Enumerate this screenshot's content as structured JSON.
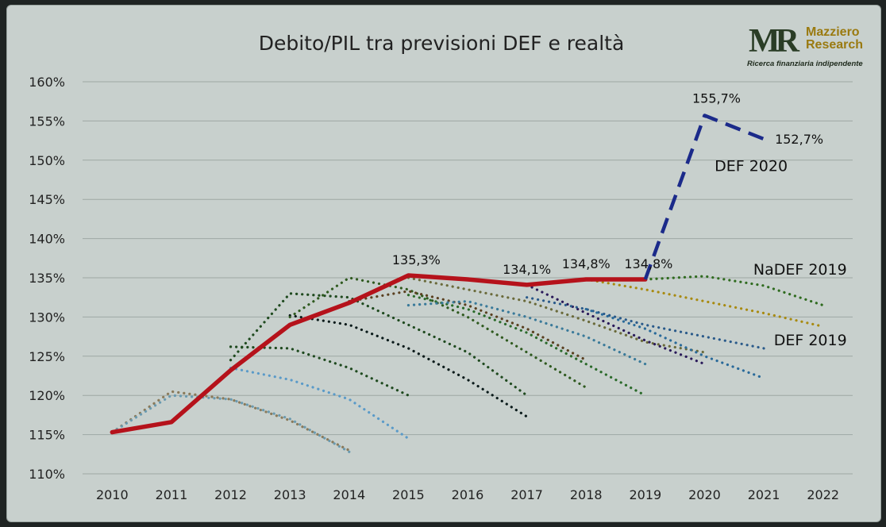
{
  "chart_data": {
    "type": "line",
    "title": "Debito/PIL tra previsioni DEF e realtà",
    "xlabel": "",
    "ylabel": "",
    "x": [
      2010,
      2011,
      2012,
      2013,
      2014,
      2015,
      2016,
      2017,
      2018,
      2019,
      2020,
      2021,
      2022
    ],
    "y_ticks": [
      "110%",
      "115%",
      "120%",
      "125%",
      "130%",
      "135%",
      "140%",
      "145%",
      "150%",
      "155%",
      "160%"
    ],
    "ylim": [
      110,
      160
    ],
    "grid": true,
    "legend": "none",
    "series": [
      {
        "style": "solid",
        "color": "#b5121b",
        "points": [
          [
            2010,
            115.3
          ],
          [
            2011,
            116.6
          ],
          [
            2012,
            123.2
          ],
          [
            2013,
            129.0
          ],
          [
            2014,
            131.8
          ],
          [
            2015,
            135.3
          ],
          [
            2016,
            134.8
          ],
          [
            2017,
            134.1
          ],
          [
            2018,
            134.8
          ],
          [
            2019,
            134.8
          ]
        ]
      },
      {
        "name": "DEF 2020",
        "style": "dashed",
        "color": "#1b2a8a",
        "points": [
          [
            2019,
            134.8
          ],
          [
            2020,
            155.7
          ],
          [
            2021,
            152.7
          ]
        ]
      },
      {
        "name": "NaDEF 2019",
        "style": "dotted",
        "color": "#2f6b1f",
        "points": [
          [
            2019,
            134.8
          ],
          [
            2020,
            135.2
          ],
          [
            2021,
            134.0
          ],
          [
            2022,
            131.5
          ]
        ]
      },
      {
        "name": "DEF 2019",
        "style": "dotted",
        "color": "#a88a10",
        "points": [
          [
            2018,
            134.8
          ],
          [
            2019,
            133.5
          ],
          [
            2020,
            132.0
          ],
          [
            2021,
            130.5
          ],
          [
            2022,
            128.8
          ]
        ]
      },
      {
        "style": "dotted",
        "color": "#8a7a5a",
        "points": [
          [
            2010,
            115.3
          ],
          [
            2011,
            120.5
          ],
          [
            2012,
            119.5
          ],
          [
            2013,
            116.8
          ],
          [
            2014,
            113.0
          ]
        ]
      },
      {
        "style": "dotted",
        "color": "#6a9ab0",
        "points": [
          [
            2010,
            115.3
          ],
          [
            2011,
            120.0
          ],
          [
            2012,
            119.5
          ],
          [
            2013,
            117.0
          ],
          [
            2014,
            112.8
          ]
        ]
      },
      {
        "style": "dotted",
        "color": "#5a9ac8",
        "points": [
          [
            2012,
            123.5
          ],
          [
            2013,
            122.0
          ],
          [
            2014,
            119.5
          ],
          [
            2015,
            114.5
          ]
        ]
      },
      {
        "style": "dotted",
        "color": "#1f4a1f",
        "points": [
          [
            2012,
            126.2
          ],
          [
            2013,
            126.0
          ],
          [
            2014,
            123.5
          ],
          [
            2015,
            120.0
          ]
        ]
      },
      {
        "style": "dotted",
        "color": "#1f4a1f",
        "points": [
          [
            2012,
            124.5
          ],
          [
            2013,
            133.0
          ],
          [
            2014,
            132.5
          ],
          [
            2015,
            129.0
          ],
          [
            2016,
            125.5
          ],
          [
            2017,
            120.0
          ]
        ]
      },
      {
        "style": "dotted",
        "color": "#0a1a1a",
        "points": [
          [
            2013,
            130.2
          ],
          [
            2014,
            129.0
          ],
          [
            2015,
            126.0
          ],
          [
            2016,
            122.0
          ],
          [
            2017,
            117.3
          ]
        ]
      },
      {
        "style": "dotted",
        "color": "#2f5a1f",
        "points": [
          [
            2013,
            130.0
          ],
          [
            2014,
            135.0
          ],
          [
            2015,
            133.5
          ],
          [
            2016,
            130.0
          ],
          [
            2017,
            125.5
          ],
          [
            2018,
            121.0
          ]
        ]
      },
      {
        "style": "dotted",
        "color": "#5a4020",
        "points": [
          [
            2014,
            132.0
          ],
          [
            2015,
            133.3
          ],
          [
            2016,
            131.5
          ],
          [
            2017,
            128.5
          ],
          [
            2018,
            124.5
          ]
        ]
      },
      {
        "style": "dotted",
        "color": "#2a6a2a",
        "points": [
          [
            2015,
            132.8
          ],
          [
            2016,
            131.0
          ],
          [
            2017,
            128.0
          ],
          [
            2018,
            124.0
          ],
          [
            2019,
            120.0
          ]
        ]
      },
      {
        "style": "dotted",
        "color": "#3a7a9a",
        "points": [
          [
            2015,
            131.5
          ],
          [
            2016,
            132.0
          ],
          [
            2017,
            130.0
          ],
          [
            2018,
            127.5
          ],
          [
            2019,
            124.0
          ]
        ]
      },
      {
        "style": "dotted",
        "color": "#6a6a3a",
        "points": [
          [
            2015,
            135.0
          ],
          [
            2016,
            133.5
          ],
          [
            2017,
            132.0
          ],
          [
            2018,
            129.5
          ],
          [
            2019,
            126.8
          ],
          [
            2020,
            125.5
          ]
        ]
      },
      {
        "style": "dotted",
        "color": "#2a1a5a",
        "points": [
          [
            2017,
            134.1
          ],
          [
            2018,
            130.5
          ],
          [
            2019,
            127.0
          ],
          [
            2020,
            124.0
          ]
        ]
      },
      {
        "style": "dotted",
        "color": "#2a5a8a",
        "points": [
          [
            2017,
            132.5
          ],
          [
            2018,
            131.0
          ],
          [
            2019,
            129.0
          ],
          [
            2020,
            127.5
          ],
          [
            2021,
            126.0
          ]
        ]
      },
      {
        "style": "dotted",
        "color": "#2a6a9a",
        "points": [
          [
            2018,
            131.0
          ],
          [
            2019,
            128.5
          ],
          [
            2020,
            125.0
          ],
          [
            2021,
            122.2
          ]
        ]
      }
    ],
    "annotations": [
      {
        "text": "135,3%",
        "x": 2015,
        "y": 135.3
      },
      {
        "text": "134,1%",
        "x": 2017,
        "y": 134.1
      },
      {
        "text": "134,8%",
        "x": 2018,
        "y": 134.8
      },
      {
        "text": "134,8%",
        "x": 2019,
        "y": 134.8
      },
      {
        "text": "155,7%",
        "x": 2020,
        "y": 155.7
      },
      {
        "text": "152,7%",
        "x": 2021,
        "y": 152.7
      }
    ],
    "series_labels": [
      {
        "text": "DEF 2020",
        "x": 2021,
        "y": 149.2
      },
      {
        "text": "NaDEF 2019",
        "x": 2022,
        "y": 136.0
      },
      {
        "text": "DEF 2019",
        "x": 2022,
        "y": 127.0
      }
    ]
  },
  "logo": {
    "mark": "MR",
    "name_line1": "Mazziero",
    "name_line2": "Research",
    "tagline": "Ricerca finanziaria indipendente"
  }
}
